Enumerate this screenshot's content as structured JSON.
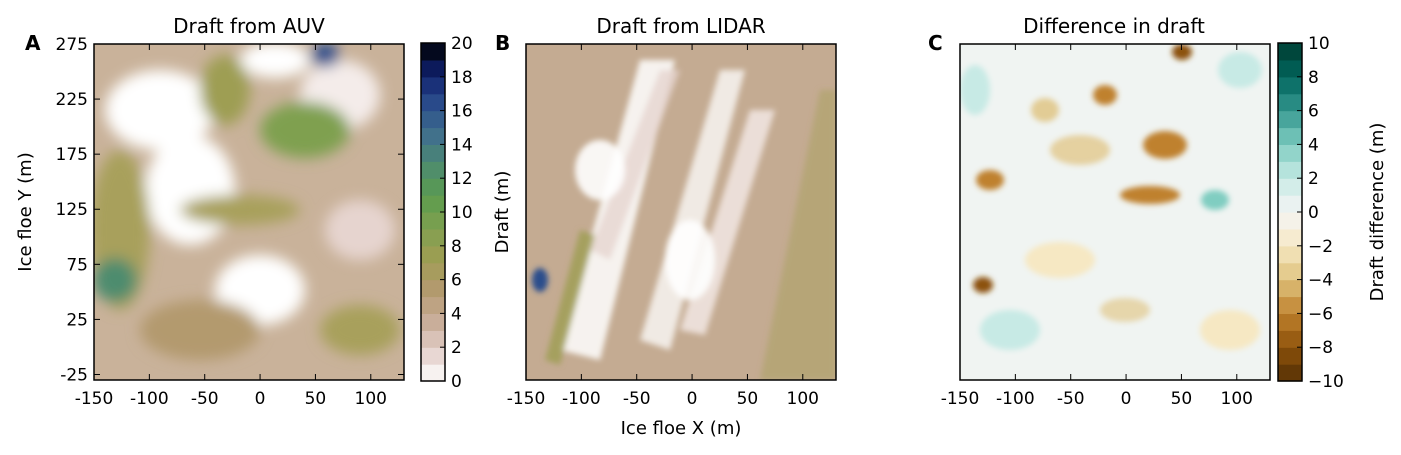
{
  "chart_data": [
    {
      "type": "heatmap",
      "panel_label": "A",
      "title": "Draft from AUV",
      "xlabel": "",
      "ylabel": "Ice floe Y (m)",
      "xlim": [
        -150,
        130
      ],
      "ylim": [
        -30,
        275
      ],
      "x_ticks": [
        -150,
        -100,
        -50,
        0,
        50,
        100
      ],
      "y_ticks": [
        -25,
        25,
        75,
        125,
        175,
        225,
        275
      ],
      "colorbar": {
        "label": "",
        "min": 0,
        "max": 20,
        "ticks": [
          0,
          2,
          4,
          6,
          8,
          10,
          12,
          14,
          16,
          18,
          20
        ],
        "levels": 20,
        "colors": [
          "#ffffff",
          "#e3cfca",
          "#c7ab96",
          "#b39a6e",
          "#9e9e52",
          "#7fa050",
          "#5c9c4d",
          "#4e8c6e",
          "#41708c",
          "#2b4e8c",
          "#0f1f6e",
          "#000000"
        ]
      }
    },
    {
      "type": "heatmap",
      "panel_label": "B",
      "title": "Draft from LIDAR",
      "xlabel": "Ice floe X (m)",
      "ylabel": "Draft (m)",
      "xlim": [
        -150,
        130
      ],
      "ylim": [
        -30,
        275
      ],
      "x_ticks": [
        -150,
        -100,
        -50,
        0,
        50,
        100
      ],
      "y_ticks": [],
      "colorbar": null
    },
    {
      "type": "heatmap",
      "panel_label": "C",
      "title": "Difference in draft",
      "xlabel": "",
      "ylabel": "",
      "xlim": [
        -150,
        130
      ],
      "ylim": [
        -30,
        275
      ],
      "x_ticks": [
        -150,
        -100,
        -50,
        0,
        50,
        100
      ],
      "y_ticks": [],
      "colorbar": {
        "label": "Draft difference (m)",
        "min": -10,
        "max": 10,
        "ticks": [
          -10,
          -8,
          -6,
          -4,
          -2,
          0,
          2,
          4,
          6,
          8,
          10
        ],
        "levels": 20,
        "colors": [
          "#543005",
          "#8c510a",
          "#bf812d",
          "#dfc27d",
          "#f6e8c3",
          "#f5f5f5",
          "#c7eae5",
          "#80cdc1",
          "#35978f",
          "#01665e",
          "#003c30"
        ]
      }
    }
  ]
}
